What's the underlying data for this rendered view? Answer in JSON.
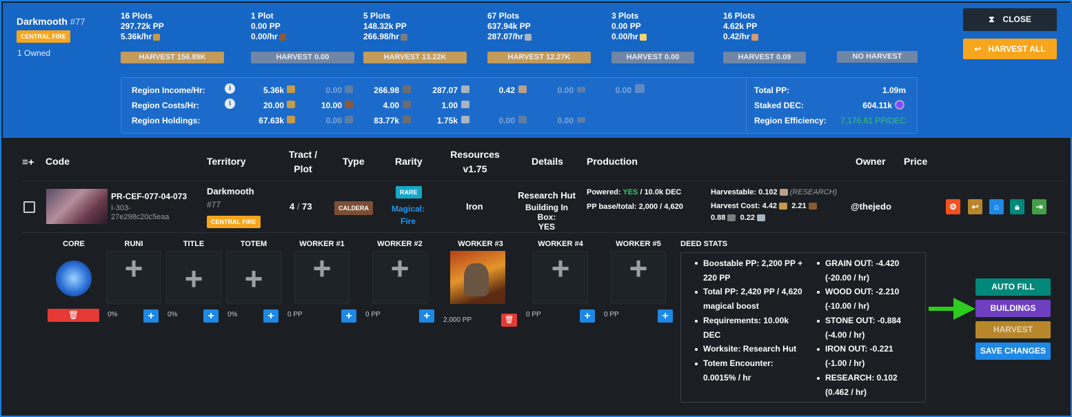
{
  "region": {
    "name": "Darkmooth",
    "number": "#77",
    "badge": "CENTRAL FIRE",
    "owned": "1 Owned"
  },
  "plot_groups": [
    {
      "plots": "16 Plots",
      "pp": "297.72k PP",
      "rate": "5.36k/hr",
      "icon": "grain-icon",
      "harvest": "HARVEST 156.89K",
      "active": true
    },
    {
      "plots": "1 Plot",
      "pp": "0.00 PP",
      "rate": "0.00/hr",
      "icon": "wood-icon",
      "harvest": "HARVEST 0.00",
      "active": false
    },
    {
      "plots": "5 Plots",
      "pp": "148.32k PP",
      "rate": "266.98/hr",
      "icon": "stone-icon",
      "harvest": "HARVEST 13.22K",
      "active": true
    },
    {
      "plots": "67 Plots",
      "pp": "637.94k PP",
      "rate": "287.07/hr",
      "icon": "iron-icon",
      "harvest": "HARVEST 12.27K",
      "active": true
    },
    {
      "plots": "3 Plots",
      "pp": "0.00 PP",
      "rate": "0.00/hr",
      "icon": "sps-icon",
      "harvest": "HARVEST 0.00",
      "active": false
    },
    {
      "plots": "16 Plots",
      "pp": "4.62k PP",
      "rate": "0.42/hr",
      "icon": "research-icon",
      "harvest": "HARVEST 0.09",
      "active": false
    }
  ],
  "no_harvest": "NO HARVEST",
  "buttons": {
    "close": "CLOSE",
    "harvest_all": "HARVEST ALL"
  },
  "region_stats": {
    "income_label": "Region Income/Hr:",
    "costs_label": "Region Costs/Hr:",
    "holdings_label": "Region Holdings:",
    "income": [
      "5.36k",
      "0.00",
      "266.98",
      "287.07",
      "0.42",
      "0.00",
      "0.00"
    ],
    "costs": [
      "20.00",
      "10.00",
      "4.00",
      "1.00"
    ],
    "holdings": [
      "67.63k",
      "0.00",
      "83.77k",
      "1.75k",
      "0.00",
      "0.00"
    ],
    "total_pp_label": "Total PP:",
    "total_pp": "1.09m",
    "staked_dec_label": "Staked DEC:",
    "staked_dec": "604.11k",
    "efficiency_label": "Region Efficiency:",
    "efficiency": "7,176.61 PP/DEC"
  },
  "table_headers": {
    "code": "Code",
    "territory": "Territory",
    "tract": "Tract /",
    "plot": "Plot",
    "type": "Type",
    "rarity": "Rarity",
    "resources": "Resources",
    "resources_ver": "v1.75",
    "details": "Details",
    "production": "Production",
    "owner": "Owner",
    "price": "Price"
  },
  "row": {
    "code": "PR-CEF-077-04-073",
    "id_line1": "I-303-",
    "id_line2": "27e298c20c5eaa",
    "territory": "Darkmooth",
    "territory_num": "#77",
    "territory_badge": "CENTRAL FIRE",
    "tract": "4",
    "plot": "73",
    "type": "CALDERA",
    "rarity": "RARE",
    "magic1": "Magical:",
    "magic2": "Fire",
    "resource": "Iron",
    "detail_title": "Research Hut",
    "detail_sub1": "Building In Box:",
    "detail_sub2": "YES",
    "powered_label": "Powered:",
    "powered_yes": "YES",
    "powered_dec": "/ 10.0k DEC",
    "pp_base": "PP base/total: 2,000 / 4,620",
    "harvestable_label": "Harvestable: 0.102",
    "harvestable_note": "(RESEARCH)",
    "harvest_cost_label": "Harvest Cost: 4.42",
    "harvest_cost_wood": "2.21",
    "harvest_cost_stone": "0.88",
    "harvest_cost_iron": "0.22",
    "owner": "@thejedo"
  },
  "action_icons": [
    "gear-icon",
    "scythe-icon",
    "store-icon",
    "lock-icon",
    "enter-icon"
  ],
  "action_colors": [
    "#f4511e",
    "#b8862b",
    "#1e88e5",
    "#00897b",
    "#43a047"
  ],
  "slots": {
    "labels": [
      "CORE",
      "RUNI",
      "TITLE",
      "TOTEM",
      "WORKER #1",
      "WORKER #2",
      "WORKER #3",
      "WORKER #4",
      "WORKER #5"
    ],
    "values": [
      "0%",
      "0%",
      "0%",
      "0 PP",
      "0 PP",
      "2,000 PP",
      "0 PP",
      "0 PP"
    ]
  },
  "deed_stats": {
    "title": "DEED STATS",
    "left": [
      [
        "Boostable PP: 2,200 PP +",
        "220 PP"
      ],
      [
        "Total PP: 2,420 PP / 4,620",
        "magical boost"
      ],
      [
        "Requirements: 10.00k",
        "DEC"
      ],
      [
        "Worksite: Research Hut"
      ],
      [
        "Totem Encounter:",
        "0.0015% / hr"
      ]
    ],
    "right": [
      [
        "GRAIN OUT: -4.420",
        "(-20.00 / hr)"
      ],
      [
        "WOOD OUT: -2.210",
        "(-10.00 / hr)"
      ],
      [
        "STONE OUT: -0.884",
        "(-4.00 / hr)"
      ],
      [
        "IRON OUT: -0.221",
        "(-1.00 / hr)"
      ],
      [
        "RESEARCH: 0.102",
        "(0.462 / hr)"
      ]
    ]
  },
  "side_buttons": {
    "auto_fill": "AUTO FILL",
    "buildings": "BUILDINGS",
    "harvest": "HARVEST",
    "save": "SAVE CHANGES"
  },
  "colors": {
    "header_blue": "#1666c6",
    "accent_orange": "#f7a51c",
    "auto_fill": "#00897b",
    "buildings": "#6f3fc1",
    "harvest": "#b8862b",
    "save": "#1e88e5",
    "arrow": "#2ecc1e"
  }
}
